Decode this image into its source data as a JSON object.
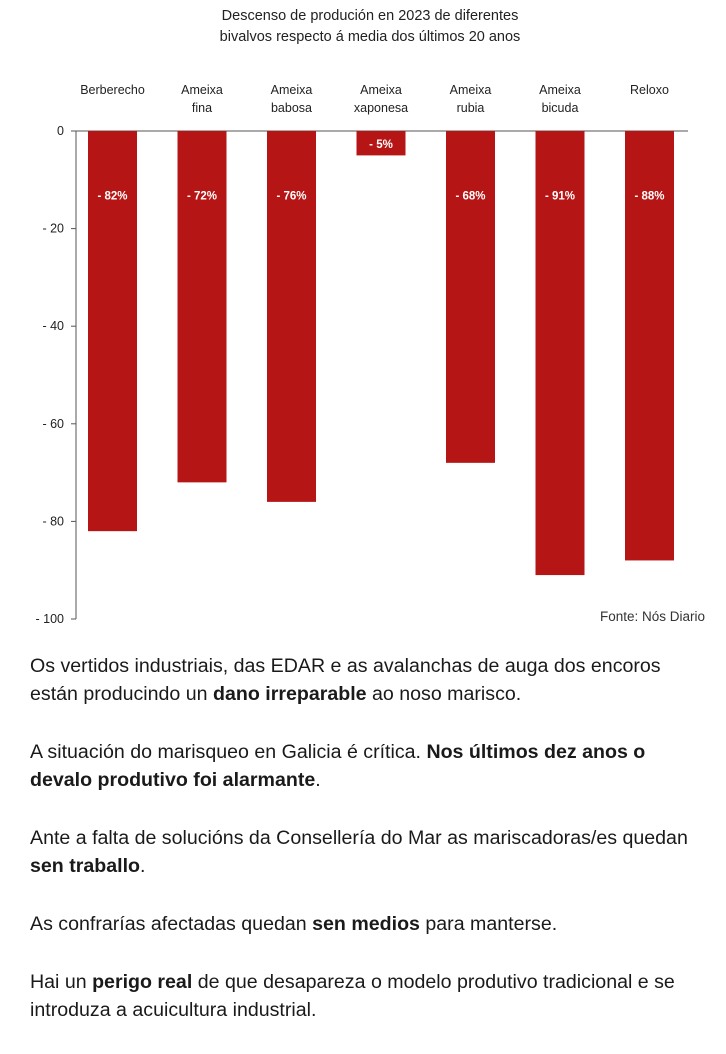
{
  "chart_data": {
    "type": "bar",
    "title_lines": [
      "Descenso de produción en 2023 de diferentes",
      "bivalvos respecto á media dos últimos 20 anos"
    ],
    "categories": [
      [
        "Berberecho"
      ],
      [
        "Ameixa",
        "fina"
      ],
      [
        "Ameixa",
        "babosa"
      ],
      [
        "Ameixa",
        "xaponesa"
      ],
      [
        "Ameixa",
        "rubia"
      ],
      [
        "Ameixa",
        "bicuda"
      ],
      [
        "Reloxo"
      ]
    ],
    "values": [
      -82,
      -72,
      -76,
      -5,
      -68,
      -91,
      -88
    ],
    "value_labels": [
      "- 82%",
      "- 72%",
      "- 76%",
      "- 5%",
      "- 68%",
      "- 91%",
      "- 88%"
    ],
    "y_ticks": [
      0,
      -20,
      -40,
      -60,
      -80,
      -100
    ],
    "y_tick_labels": [
      "0",
      "- 20",
      "- 40",
      "- 60",
      "- 80",
      "- 100"
    ],
    "ylim": [
      -100,
      0
    ],
    "bar_color": "#b51615",
    "source": "Fonte: Nós Diario"
  },
  "paragraphs": [
    [
      {
        "t": "Os vertidos industriais, das EDAR e as avalanchas de auga dos encoros están producindo un ",
        "b": false
      },
      {
        "t": "dano irreparable",
        "b": true
      },
      {
        "t": " ao noso marisco.",
        "b": false
      }
    ],
    [
      {
        "t": "A situación do marisqueo en Galicia é crítica. ",
        "b": false
      },
      {
        "t": "Nos últimos dez anos o devalo produtivo foi alarmante",
        "b": true
      },
      {
        "t": ".",
        "b": false
      }
    ],
    [
      {
        "t": "Ante a falta de solucións da Consellería do Mar as mariscadoras/es quedan ",
        "b": false
      },
      {
        "t": "sen traballo",
        "b": true
      },
      {
        "t": ".",
        "b": false
      }
    ],
    [
      {
        "t": "As confrarías afectadas quedan ",
        "b": false
      },
      {
        "t": "sen medios",
        "b": true
      },
      {
        "t": " para manterse.",
        "b": false
      }
    ],
    [
      {
        "t": "Hai un ",
        "b": false
      },
      {
        "t": "perigo real",
        "b": true
      },
      {
        "t": " de que desapareza o modelo produtivo tradicional e se introduza a acuicultura industrial.",
        "b": false
      }
    ]
  ]
}
